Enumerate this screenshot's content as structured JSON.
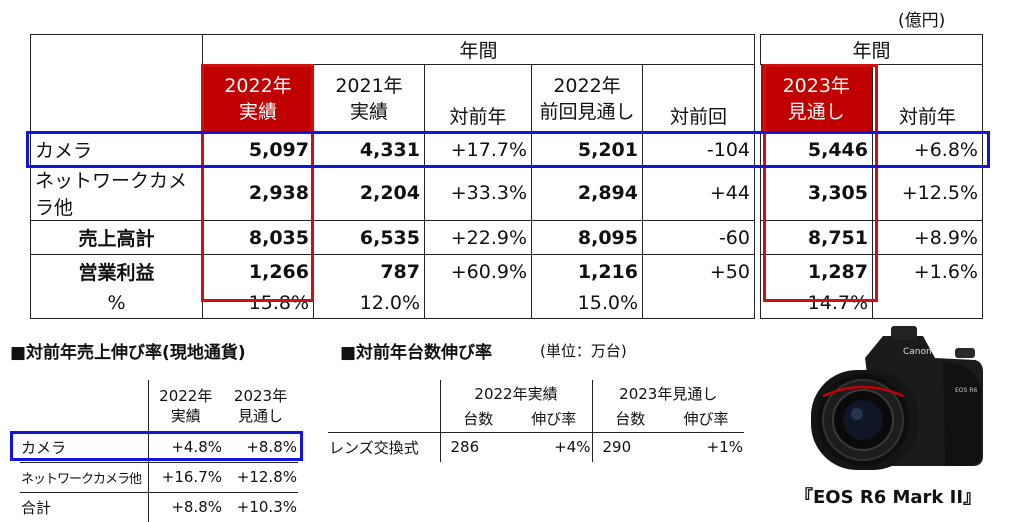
{
  "unit": "(億円)",
  "main_table": {
    "group_headers": [
      "年間",
      "年間"
    ],
    "col_headers": [
      "2022年\n実績",
      "2021年\n実績",
      "対前年",
      "2022年\n前回見通し",
      "対前回",
      "2023年\n見通し",
      "対前年"
    ],
    "rows": [
      {
        "label": "カメラ",
        "values": [
          "5,097",
          "4,331",
          "+17.7%",
          "5,201",
          "-104",
          "5,446",
          "+6.8%"
        ]
      },
      {
        "label": "ネットワークカメラ他",
        "values": [
          "2,938",
          "2,204",
          "+33.3%",
          "2,894",
          "+44",
          "3,305",
          "+12.5%"
        ]
      },
      {
        "label": "売上高計",
        "values": [
          "8,035",
          "6,535",
          "+22.9%",
          "8,095",
          "-60",
          "8,751",
          "+8.9%"
        ]
      },
      {
        "label": "営業利益",
        "values": [
          "1,266",
          "787",
          "+60.9%",
          "1,216",
          "+50",
          "1,287",
          "+1.6%"
        ]
      },
      {
        "label": "%",
        "values": [
          "15.8%",
          "12.0%",
          "",
          "15.0%",
          "",
          "14.7%",
          ""
        ]
      }
    ]
  },
  "growth_local": {
    "title": "■対前年売上伸び率(現地通貨)",
    "col_headers": [
      "2022年\n実績",
      "2023年\n見通し"
    ],
    "rows": [
      {
        "label": "カメラ",
        "values": [
          "+4.8%",
          "+8.8%"
        ]
      },
      {
        "label": "ネットワークカメラ他",
        "values": [
          "+16.7%",
          "+12.8%"
        ]
      },
      {
        "label": "合計",
        "values": [
          "+8.8%",
          "+10.3%"
        ]
      }
    ]
  },
  "unit_growth": {
    "title": "■対前年台数伸び率",
    "unit": "(単位：万台)",
    "group_headers": [
      "2022年実績",
      "2023年見通し"
    ],
    "sub_headers": [
      "台数",
      "伸び率",
      "台数",
      "伸び率"
    ],
    "rows": [
      {
        "label": "レンズ交換式",
        "values": [
          "286",
          "+4%",
          "290",
          "+1%"
        ]
      }
    ]
  },
  "product": {
    "caption": "『EOS R6 Mark II』",
    "brand": "Canon",
    "model": "EOS R6"
  }
}
